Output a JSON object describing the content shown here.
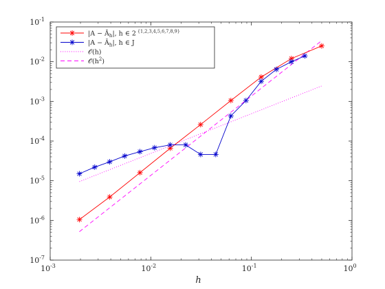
{
  "chart_data": {
    "type": "line",
    "xscale": "log",
    "yscale": "log",
    "xlim": [
      0.001,
      1
    ],
    "ylim": [
      1e-07,
      0.1
    ],
    "xlabel": "h",
    "ylabel": "",
    "title": "",
    "grid": false,
    "legend_position": "top-left",
    "x_ticks": [
      {
        "mant": "10",
        "exp": "-3",
        "value": 0.001
      },
      {
        "mant": "10",
        "exp": "-2",
        "value": 0.01
      },
      {
        "mant": "10",
        "exp": "-1",
        "value": 0.1
      },
      {
        "mant": "10",
        "exp": "0",
        "value": 1
      }
    ],
    "y_ticks": [
      {
        "mant": "10",
        "exp": "-7",
        "value": 1e-07
      },
      {
        "mant": "10",
        "exp": "-6",
        "value": 1e-06
      },
      {
        "mant": "10",
        "exp": "-5",
        "value": 1e-05
      },
      {
        "mant": "10",
        "exp": "-4",
        "value": 0.0001
      },
      {
        "mant": "10",
        "exp": "-3",
        "value": 0.001
      },
      {
        "mant": "10",
        "exp": "-2",
        "value": 0.01
      },
      {
        "mant": "10",
        "exp": "-1",
        "value": 0.1
      }
    ],
    "series": [
      {
        "name": "|A − A_h|, h ∈ 2^{1,2,3,4,5,6,7,8,9}",
        "color": "#ff0000",
        "marker": "asterisk",
        "linestyle": "solid",
        "x": [
          0.001953125,
          0.00390625,
          0.0078125,
          0.015625,
          0.03125,
          0.0625,
          0.125,
          0.25,
          0.5
        ],
        "y": [
          1.05e-06,
          3.9e-06,
          1.6e-05,
          6.6e-05,
          0.00026,
          0.00105,
          0.0041,
          0.012,
          0.025
        ]
      },
      {
        "name": "|A − A_h|, h ∈ J",
        "color": "#0000cc",
        "marker": "asterisk",
        "linestyle": "solid",
        "x": [
          0.00195,
          0.00277,
          0.0039,
          0.0055,
          0.0078,
          0.0109,
          0.0156,
          0.0222,
          0.0313,
          0.0442,
          0.0625,
          0.0884,
          0.125,
          0.177,
          0.25,
          0.34
        ],
        "y": [
          1.5e-05,
          2.2e-05,
          3e-05,
          4.2e-05,
          5.4e-05,
          6.8e-05,
          8e-05,
          8e-05,
          4.6e-05,
          4.6e-05,
          0.00043,
          0.00105,
          0.0032,
          0.0064,
          0.01,
          0.014
        ]
      },
      {
        "name": "O(h)",
        "color": "#ff00ff",
        "marker": "none",
        "linestyle": "dotted",
        "x": [
          0.00195,
          0.5
        ],
        "y": [
          9.5e-06,
          0.00245
        ]
      },
      {
        "name": "O(h²)",
        "color": "#ff00ff",
        "marker": "none",
        "linestyle": "dashed",
        "x": [
          0.00195,
          0.5
        ],
        "y": [
          5.2e-07,
          0.034
        ]
      }
    ],
    "legend": [
      {
        "label_main": "|A − Ā",
        "label_sub": "h",
        "label_rest": "|, h ∈ 2",
        "label_sup": "{1,2,3,4,5,6,7,8,9}"
      },
      {
        "label_main": "|A − Ā",
        "label_sub": "h",
        "label_rest": "|, h ∈ J",
        "label_sup": ""
      },
      {
        "label_main": "𝒪(h)",
        "label_sub": "",
        "label_rest": "",
        "label_sup": ""
      },
      {
        "label_main": "𝒪(h",
        "label_sub": "",
        "label_rest": ")",
        "label_sup": "2"
      }
    ]
  }
}
